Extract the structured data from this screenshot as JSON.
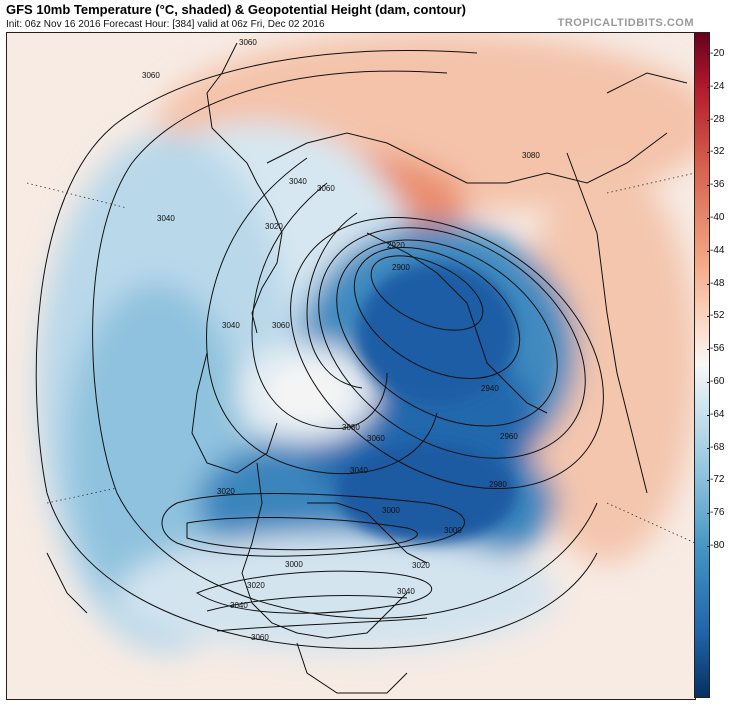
{
  "header": {
    "title": "GFS 10mb Temperature (°C, shaded) & Geopotential Height (dam, contour)",
    "subtitle": "Init: 06z Nov 16 2016   Forecast Hour: [384]   valid at 06z Fri, Dec 02 2016",
    "brand": "TROPICALTIDBITS.COM"
  },
  "colorbar": {
    "ticks": [
      "-20",
      "-24",
      "-28",
      "-32",
      "-36",
      "-40",
      "-44",
      "-48",
      "-52",
      "-56",
      "-60",
      "-64",
      "-68",
      "-72",
      "-76",
      "-80"
    ],
    "top_color": "#67001f",
    "bottom_color": "#053061"
  },
  "contour_labels": {
    "c1": "3060",
    "c2": "3060",
    "c3": "3040",
    "c4": "3060",
    "c5": "3040",
    "c6": "3020",
    "c7": "3080",
    "c8": "2920",
    "c9": "2900",
    "c10": "3040",
    "c11": "3060",
    "c12": "2940",
    "c13": "2960",
    "c14": "3080",
    "c15": "3060",
    "c16": "3040",
    "c17": "2980",
    "c18": "3020",
    "c19": "3000",
    "c20": "3000",
    "c21": "3000",
    "c22": "3020",
    "c23": "3020",
    "c24": "3040",
    "c25": "3040",
    "c26": "3060"
  }
}
